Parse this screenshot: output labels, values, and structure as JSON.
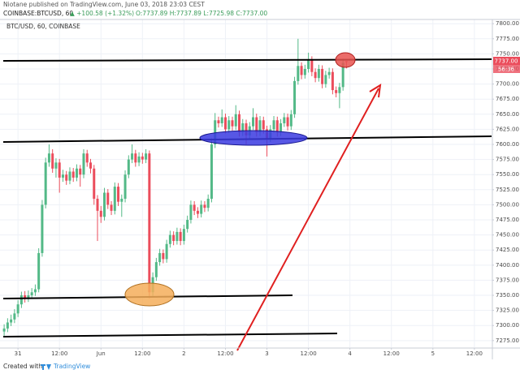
{
  "header": {
    "byline": "Niotane published on TradingView.com, June 03, 2018 23:03 CEST",
    "symbol": "COINBASE:BTCUSD, 60",
    "change": "▲ +100.58 (+1.32%)",
    "ohlc": "O:7737.89 H:7737.89 L:7725.98 C:7737.00"
  },
  "footer": {
    "created": "Created with",
    "brand": "TradingView"
  },
  "chart_data": {
    "type": "candlestick",
    "title": "BTC/USD, 60, COINBASE",
    "up_color": "#53b987",
    "down_color": "#eb4d5c",
    "grid": true,
    "last_price_label": "7737.00",
    "countdown": "56:36",
    "open": [
      7290,
      7295,
      7305,
      7310,
      7320,
      7335,
      7350,
      7345,
      7350,
      7355,
      7360,
      7420,
      7500,
      7570,
      7585,
      7560,
      7570,
      7545,
      7550,
      7540,
      7555,
      7545,
      7560,
      7550,
      7585,
      7570,
      7560,
      7510,
      7490,
      7480,
      7520,
      7500,
      7490,
      7530,
      7505,
      7510,
      7550,
      7575,
      7585,
      7570,
      7580,
      7575,
      7585,
      7355,
      7380,
      7405,
      7420,
      7410,
      7435,
      7450,
      7440,
      7455,
      7440,
      7460,
      7475,
      7500,
      7490,
      7485,
      7500,
      7495,
      7510,
      7600,
      7640,
      7635,
      7645,
      7625,
      7640,
      7630,
      7650,
      7620,
      7635,
      7615,
      7630,
      7645,
      7620,
      7640,
      7625,
      7610,
      7625,
      7640,
      7620,
      7635,
      7645,
      7630,
      7650,
      7705,
      7730,
      7715,
      7725,
      7740,
      7720,
      7710,
      7725,
      7700,
      7715,
      7720,
      7690,
      7685,
      7695,
      7737.89
    ],
    "high": [
      7302,
      7312,
      7318,
      7327,
      7342,
      7356,
      7357,
      7358,
      7362,
      7368,
      7428,
      7508,
      7578,
      7600,
      7592,
      7577,
      7576,
      7558,
      7556,
      7562,
      7561,
      7567,
      7566,
      7592,
      7591,
      7576,
      7566,
      7516,
      7498,
      7528,
      7526,
      7506,
      7537,
      7536,
      7517,
      7557,
      7582,
      7600,
      7591,
      7587,
      7586,
      7592,
      7590,
      7388,
      7412,
      7427,
      7426,
      7442,
      7457,
      7456,
      7462,
      7461,
      7467,
      7482,
      7507,
      7506,
      7496,
      7507,
      7506,
      7517,
      7610,
      7652,
      7646,
      7658,
      7651,
      7647,
      7646,
      7665,
      7656,
      7642,
      7641,
      7637,
      7660,
      7651,
      7647,
      7646,
      7631,
      7632,
      7647,
      7646,
      7642,
      7652,
      7651,
      7657,
      7712,
      7775,
      7736,
      7732,
      7752,
      7746,
      7726,
      7732,
      7731,
      7722,
      7727,
      7726,
      7696,
      7702,
      7742,
      7737.89
    ],
    "low": [
      7283,
      7289,
      7299,
      7304,
      7314,
      7329,
      7338,
      7339,
      7344,
      7349,
      7355,
      7414,
      7494,
      7563,
      7553,
      7545,
      7520,
      7538,
      7533,
      7534,
      7538,
      7539,
      7530,
      7544,
      7563,
      7552,
      7500,
      7440,
      7470,
      7474,
      7493,
      7483,
      7484,
      7498,
      7480,
      7504,
      7544,
      7569,
      7563,
      7564,
      7568,
      7569,
      7345,
      7349,
      7374,
      7399,
      7403,
      7404,
      7429,
      7433,
      7434,
      7433,
      7434,
      7454,
      7469,
      7483,
      7478,
      7479,
      7488,
      7489,
      7504,
      7594,
      7628,
      7629,
      7618,
      7619,
      7623,
      7624,
      7613,
      7614,
      7600,
      7609,
      7624,
      7613,
      7614,
      7618,
      7580,
      7604,
      7619,
      7613,
      7614,
      7629,
      7623,
      7624,
      7644,
      7699,
      7708,
      7709,
      7719,
      7713,
      7703,
      7704,
      7693,
      7694,
      7709,
      7683,
      7678,
      7660,
      7689,
      7725.98
    ],
    "close": [
      7295,
      7305,
      7310,
      7320,
      7335,
      7350,
      7345,
      7350,
      7355,
      7360,
      7420,
      7500,
      7570,
      7585,
      7560,
      7570,
      7545,
      7550,
      7540,
      7555,
      7545,
      7560,
      7550,
      7585,
      7570,
      7560,
      7510,
      7490,
      7480,
      7520,
      7500,
      7490,
      7530,
      7505,
      7510,
      7550,
      7575,
      7585,
      7570,
      7580,
      7575,
      7585,
      7355,
      7380,
      7405,
      7420,
      7410,
      7435,
      7450,
      7440,
      7455,
      7440,
      7460,
      7475,
      7500,
      7490,
      7485,
      7500,
      7495,
      7510,
      7600,
      7640,
      7635,
      7645,
      7625,
      7640,
      7630,
      7650,
      7620,
      7635,
      7615,
      7630,
      7645,
      7620,
      7640,
      7625,
      7610,
      7625,
      7640,
      7620,
      7635,
      7645,
      7630,
      7650,
      7705,
      7730,
      7715,
      7725,
      7740,
      7720,
      7710,
      7725,
      7700,
      7715,
      7720,
      7690,
      7685,
      7695,
      7735,
      7737.0
    ],
    "xlim": [
      -1.2,
      141.2
    ],
    "xticks": [
      {
        "value": 4,
        "label": "31"
      },
      {
        "value": 16,
        "label": "12:00"
      },
      {
        "value": 28,
        "label": "Jun"
      },
      {
        "value": 40,
        "label": "12:00"
      },
      {
        "value": 52,
        "label": "2"
      },
      {
        "value": 64,
        "label": "12:00"
      },
      {
        "value": 76,
        "label": "3"
      },
      {
        "value": 88,
        "label": "12:00"
      },
      {
        "value": 100,
        "label": "4"
      },
      {
        "value": 112,
        "label": "12:00"
      },
      {
        "value": 124,
        "label": "5"
      },
      {
        "value": 136,
        "label": "12:00"
      }
    ],
    "ylim": [
      7264,
      7807
    ],
    "yticks": [
      {
        "value": 7275,
        "label": "7275.00"
      },
      {
        "value": 7300,
        "label": "7300.00"
      },
      {
        "value": 7325,
        "label": "7325.00"
      },
      {
        "value": 7350,
        "label": "7350.00"
      },
      {
        "value": 7375,
        "label": "7375.00"
      },
      {
        "value": 7400,
        "label": "7400.00"
      },
      {
        "value": 7425,
        "label": "7425.00"
      },
      {
        "value": 7450,
        "label": "7450.00"
      },
      {
        "value": 7475,
        "label": "7475.00"
      },
      {
        "value": 7500,
        "label": "7500.00"
      },
      {
        "value": 7525,
        "label": "7525.00"
      },
      {
        "value": 7550,
        "label": "7550.00"
      },
      {
        "value": 7575,
        "label": "7575.00"
      },
      {
        "value": 7600,
        "label": "7600.00"
      },
      {
        "value": 7625,
        "label": "7625.00"
      },
      {
        "value": 7650,
        "label": "7650.00"
      },
      {
        "value": 7675,
        "label": "7675.00"
      },
      {
        "value": 7700,
        "label": "7700.00"
      },
      {
        "value": 7725,
        "label": "7725.00"
      },
      {
        "value": 7750,
        "label": "7750.00"
      },
      {
        "value": 7775,
        "label": "7775.00"
      },
      {
        "value": 7800,
        "label": "7800.00"
      }
    ]
  }
}
